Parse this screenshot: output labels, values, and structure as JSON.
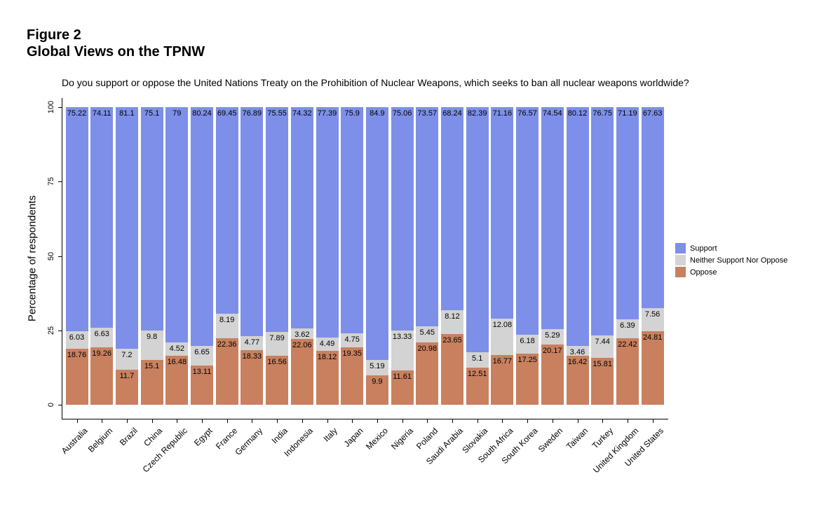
{
  "figure": {
    "label": "Figure 2",
    "title": "Global Views on the TPNW"
  },
  "subtitle": "Do you support or oppose the United Nations Treaty on the Prohibition of Nuclear Weapons, which seeks to ban all nuclear weapons worldwide?",
  "chart_data": {
    "type": "bar",
    "stacked": true,
    "title": "Global Views on the TPNW",
    "subtitle": "Do you support or oppose the United Nations Treaty on the Prohibition of Nuclear Weapons, which seeks to ban all nuclear weapons worldwide?",
    "xlabel": "",
    "ylabel": "Percentage of respondents",
    "ylim": [
      0,
      100
    ],
    "yticks": [
      0,
      25,
      50,
      75,
      100
    ],
    "grid": false,
    "legend_position": "right",
    "categories": [
      "Australia",
      "Belgium",
      "Brazil",
      "China",
      "Czech Republic",
      "Egypt",
      "France",
      "Germany",
      "India",
      "Indonesia",
      "Italy",
      "Japan",
      "Mexico",
      "Nigeria",
      "Poland",
      "Saudi Arabia",
      "Slovakia",
      "South Africa",
      "South Korea",
      "Sweden",
      "Taiwan",
      "Turkey",
      "United Kingdom",
      "United States"
    ],
    "series": [
      {
        "name": "Support",
        "color": "#7D8FE8",
        "values": [
          75.22,
          74.11,
          81.1,
          75.1,
          79,
          80.24,
          69.45,
          76.89,
          75.55,
          74.32,
          77.39,
          75.9,
          84.9,
          75.06,
          73.57,
          68.24,
          82.39,
          71.16,
          76.57,
          74.54,
          80.12,
          76.75,
          71.19,
          67.63
        ]
      },
      {
        "name": "Neither Support Nor Oppose",
        "color": "#D3D3D3",
        "values": [
          6.03,
          6.63,
          7.2,
          9.8,
          4.52,
          6.65,
          8.19,
          4.77,
          7.89,
          3.62,
          4.49,
          4.75,
          5.19,
          13.33,
          5.45,
          8.12,
          5.1,
          12.08,
          6.18,
          5.29,
          3.46,
          7.44,
          6.39,
          7.56
        ]
      },
      {
        "name": "Oppose",
        "color": "#C8805F",
        "values": [
          18.76,
          19.26,
          11.7,
          15.1,
          16.48,
          13.11,
          22.36,
          18.33,
          16.56,
          22.06,
          18.12,
          19.35,
          9.9,
          11.61,
          20.98,
          23.65,
          12.51,
          16.77,
          17.25,
          20.17,
          16.42,
          15.81,
          22.42,
          24.81
        ]
      }
    ]
  }
}
